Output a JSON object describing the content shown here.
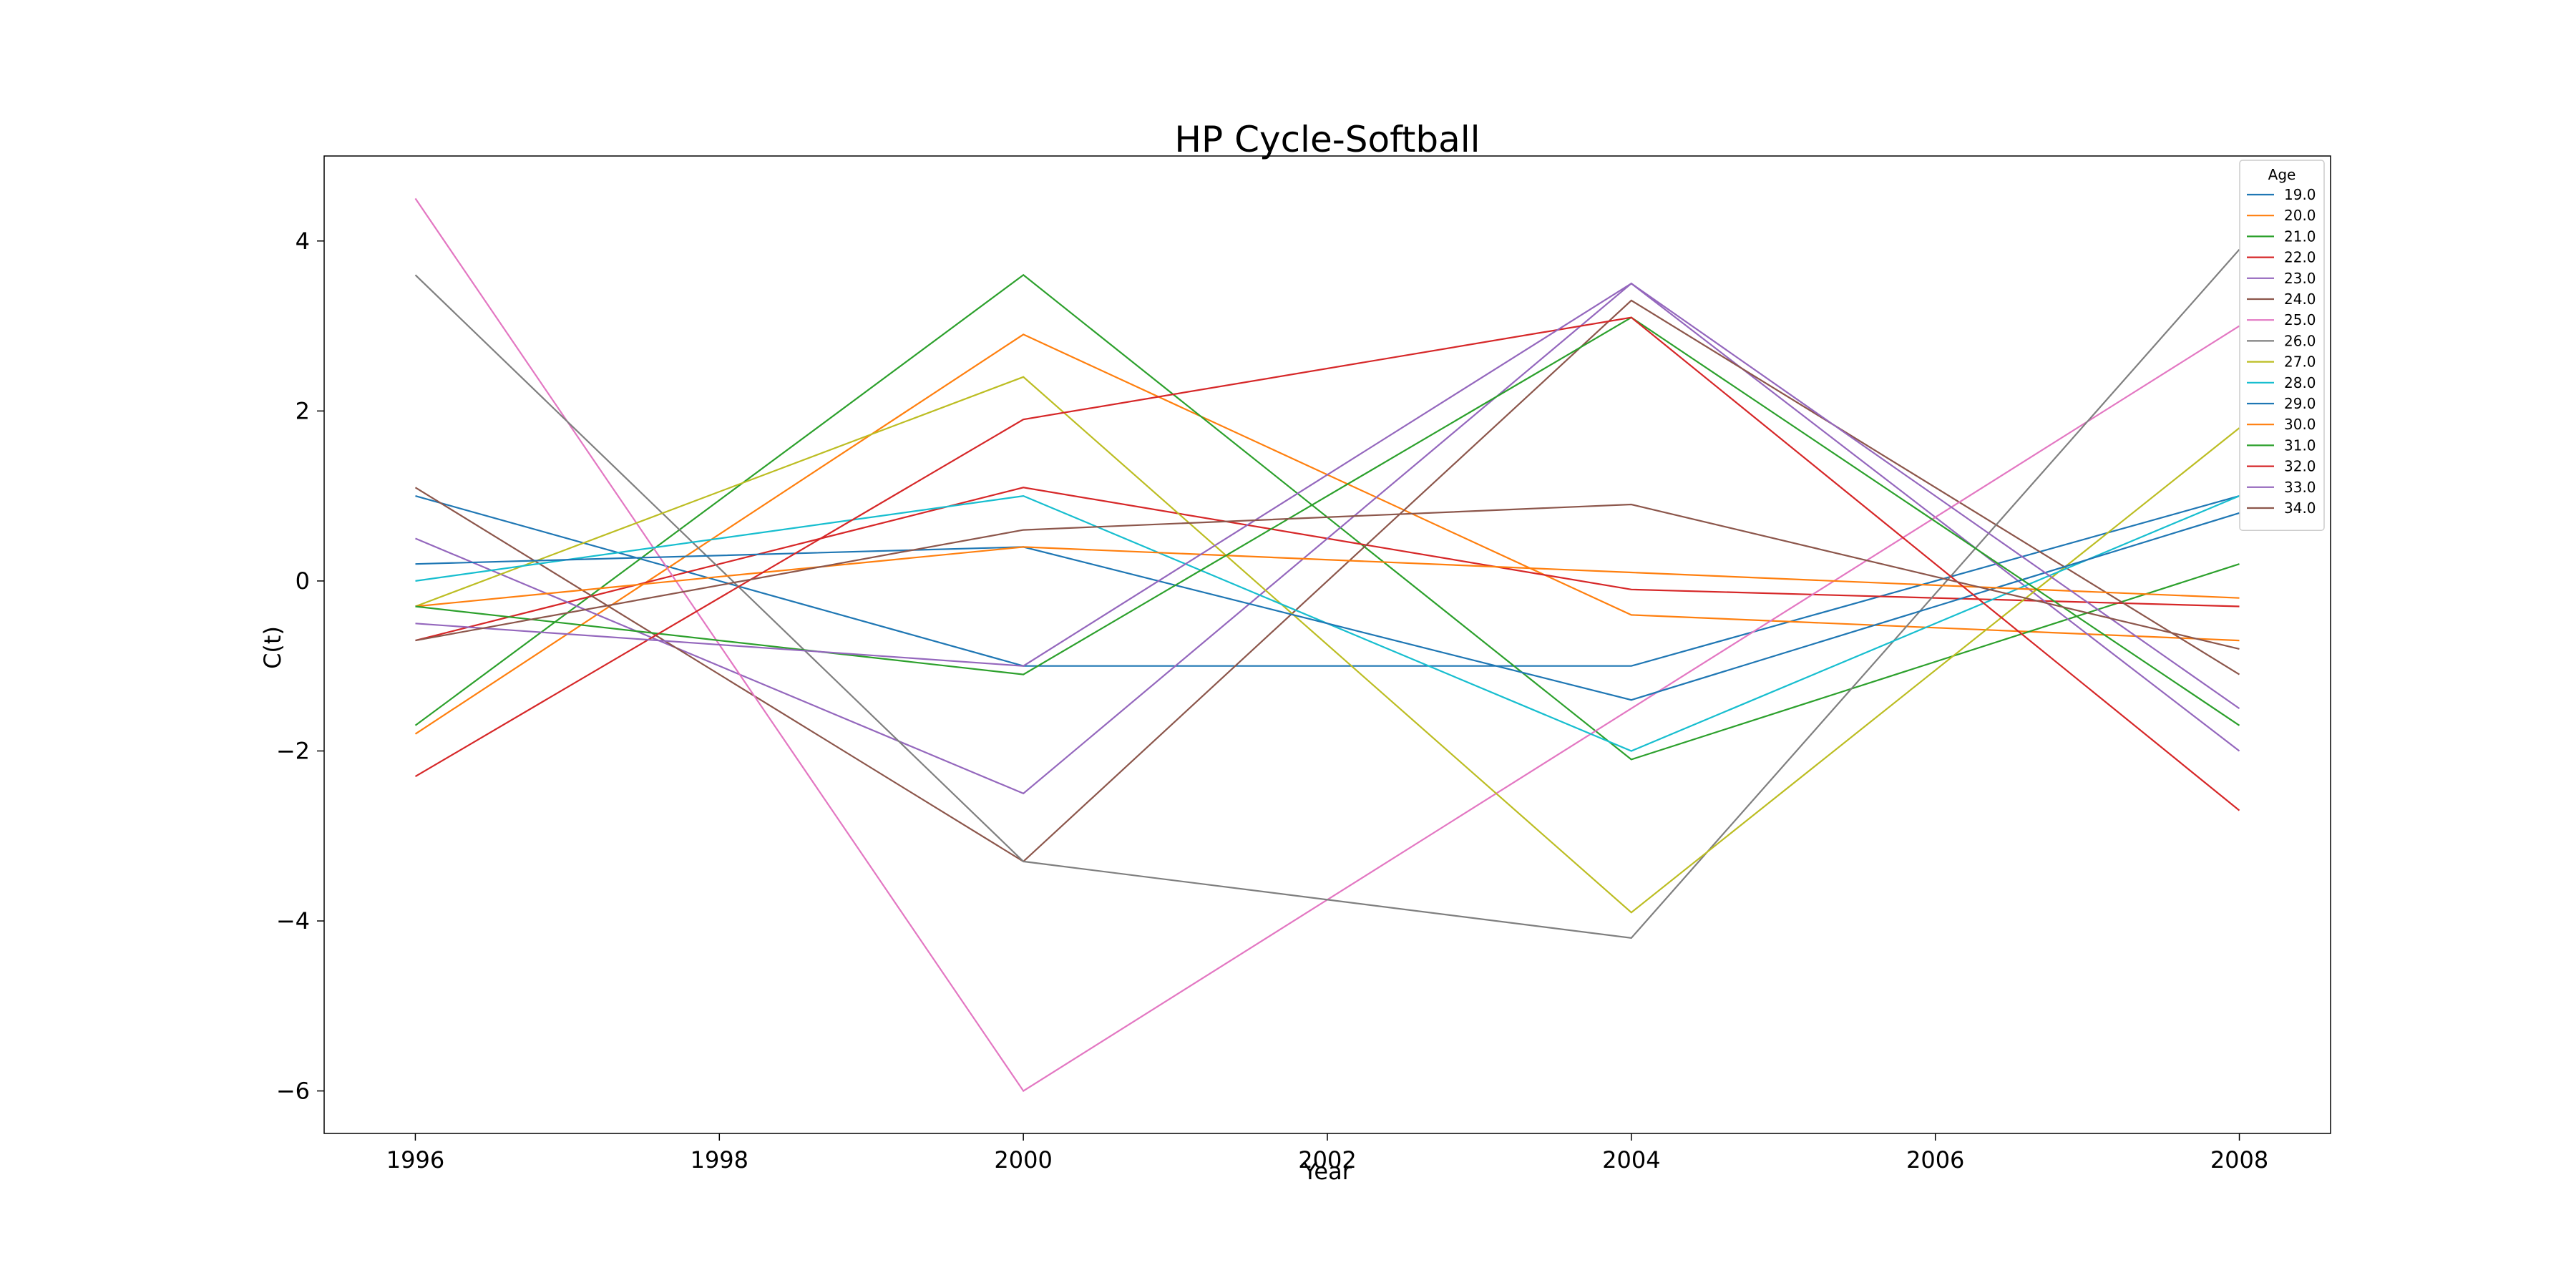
{
  "chart_data": {
    "type": "line",
    "title": "HP Cycle-Softball",
    "xlabel": "Year",
    "ylabel": "C(t)",
    "xlim": [
      1995.4,
      2008.6
    ],
    "ylim": [
      -6.5,
      5.0
    ],
    "x_ticks": [
      1996,
      1998,
      2000,
      2002,
      2004,
      2006,
      2008
    ],
    "y_ticks": [
      4,
      2,
      0,
      -2,
      -4,
      -6
    ],
    "x_tick_labels": [
      "1996",
      "1998",
      "2000",
      "2002",
      "2004",
      "2006",
      "2008"
    ],
    "y_tick_labels": [
      "4",
      "2",
      "0",
      "−2",
      "−4",
      "−6"
    ],
    "x": [
      1996,
      2000,
      2004,
      2008
    ],
    "grid": false,
    "legend": {
      "title": "Age",
      "position": "top-right"
    },
    "series": [
      {
        "name": "19.0",
        "color": "#1f77b4",
        "values": [
          1.0,
          -1.0,
          -1.0,
          1.0
        ]
      },
      {
        "name": "20.0",
        "color": "#ff7f0e",
        "values": [
          -1.8,
          2.9,
          -0.4,
          -0.7
        ]
      },
      {
        "name": "21.0",
        "color": "#2ca02c",
        "values": [
          -1.7,
          3.6,
          -2.1,
          0.2
        ]
      },
      {
        "name": "22.0",
        "color": "#d62728",
        "values": [
          -0.7,
          1.1,
          -0.1,
          -0.3
        ]
      },
      {
        "name": "23.0",
        "color": "#9467bd",
        "values": [
          0.5,
          -2.5,
          3.5,
          -2.0
        ]
      },
      {
        "name": "24.0",
        "color": "#8c564b",
        "values": [
          1.1,
          -3.3,
          3.3,
          -1.1
        ]
      },
      {
        "name": "25.0",
        "color": "#e377c2",
        "values": [
          4.5,
          -6.0,
          -1.5,
          3.0
        ]
      },
      {
        "name": "26.0",
        "color": "#7f7f7f",
        "values": [
          3.6,
          -3.3,
          -4.2,
          3.9
        ]
      },
      {
        "name": "27.0",
        "color": "#bcbd22",
        "values": [
          -0.3,
          2.4,
          -3.9,
          1.8
        ]
      },
      {
        "name": "28.0",
        "color": "#17becf",
        "values": [
          0.0,
          1.0,
          -2.0,
          1.0
        ]
      },
      {
        "name": "29.0",
        "color": "#1f77b4",
        "values": [
          0.2,
          0.4,
          -1.4,
          0.8
        ]
      },
      {
        "name": "30.0",
        "color": "#ff7f0e",
        "values": [
          -0.3,
          0.4,
          0.1,
          -0.2
        ]
      },
      {
        "name": "31.0",
        "color": "#2ca02c",
        "values": [
          -0.3,
          -1.1,
          3.1,
          -1.7
        ]
      },
      {
        "name": "32.0",
        "color": "#d62728",
        "values": [
          -2.3,
          1.9,
          3.1,
          -2.7
        ]
      },
      {
        "name": "33.0",
        "color": "#9467bd",
        "values": [
          -0.5,
          -1.0,
          3.5,
          -1.5
        ]
      },
      {
        "name": "34.0",
        "color": "#8c564b",
        "values": [
          -0.7,
          0.6,
          0.9,
          -0.8
        ]
      }
    ]
  }
}
